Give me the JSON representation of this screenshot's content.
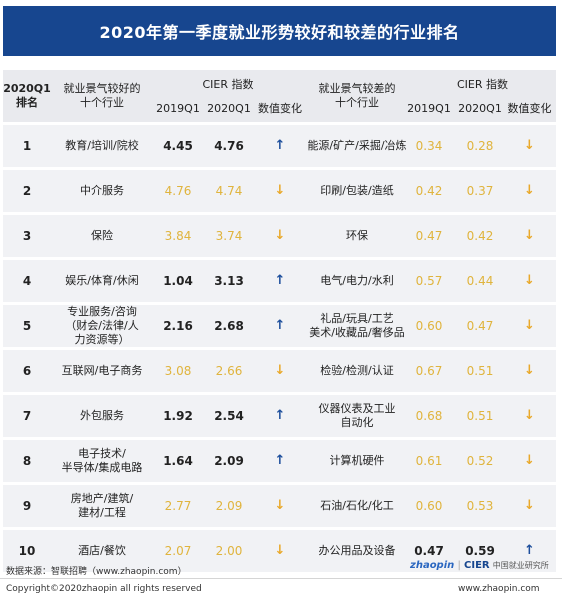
{
  "title": "2020年第一季度就业形势较好和较差的行业排名",
  "header": {
    "rank_label_1": "2020Q1",
    "rank_label_2": "排名",
    "good_industry_1": "就业景气较好的",
    "good_industry_2": "十个行业",
    "cier_index": "CIER 指数",
    "col_2019": "2019Q1",
    "col_2020": "2020Q1",
    "change": "数值变化",
    "bad_industry_1": "就业景气较差的",
    "bad_industry_2": "十个行业"
  },
  "rows": [
    {
      "rank": "1",
      "good": [
        "教育/培训/院校"
      ],
      "g2019": "4.45",
      "g2020": "4.76",
      "gcolor": "dark",
      "gdir": "up",
      "bad": [
        "能源/矿产/采掘/冶炼"
      ],
      "b2019": "0.34",
      "b2020": "0.28",
      "bcolor": "gold",
      "bdir": "down"
    },
    {
      "rank": "2",
      "good": [
        "中介服务"
      ],
      "g2019": "4.76",
      "g2020": "4.74",
      "gcolor": "gold",
      "gdir": "down",
      "bad": [
        "印刷/包装/造纸"
      ],
      "b2019": "0.42",
      "b2020": "0.37",
      "bcolor": "gold",
      "bdir": "down"
    },
    {
      "rank": "3",
      "good": [
        "保险"
      ],
      "g2019": "3.84",
      "g2020": "3.74",
      "gcolor": "gold",
      "gdir": "down",
      "bad": [
        "环保"
      ],
      "b2019": "0.47",
      "b2020": "0.42",
      "bcolor": "gold",
      "bdir": "down"
    },
    {
      "rank": "4",
      "good": [
        "娱乐/体育/休闲"
      ],
      "g2019": "1.04",
      "g2020": "3.13",
      "gcolor": "dark",
      "gdir": "up",
      "bad": [
        "电气/电力/水利"
      ],
      "b2019": "0.57",
      "b2020": "0.44",
      "bcolor": "gold",
      "bdir": "down"
    },
    {
      "rank": "5",
      "good": [
        "专业服务/咨询",
        "（财会/法律/人",
        "力资源等）"
      ],
      "g2019": "2.16",
      "g2020": "2.68",
      "gcolor": "dark",
      "gdir": "up",
      "bad": [
        "礼品/玩具/工艺",
        "美术/收藏品/奢侈品"
      ],
      "b2019": "0.60",
      "b2020": "0.47",
      "bcolor": "gold",
      "bdir": "down"
    },
    {
      "rank": "6",
      "good": [
        "互联网/电子商务"
      ],
      "g2019": "3.08",
      "g2020": "2.66",
      "gcolor": "gold",
      "gdir": "down",
      "bad": [
        "检验/检测/认证"
      ],
      "b2019": "0.67",
      "b2020": "0.51",
      "bcolor": "gold",
      "bdir": "down"
    },
    {
      "rank": "7",
      "good": [
        "外包服务"
      ],
      "g2019": "1.92",
      "g2020": "2.54",
      "gcolor": "dark",
      "gdir": "up",
      "bad": [
        "仪器仪表及工业",
        "自动化"
      ],
      "b2019": "0.68",
      "b2020": "0.51",
      "bcolor": "gold",
      "bdir": "down"
    },
    {
      "rank": "8",
      "good": [
        "电子技术/",
        "半导体/集成电路"
      ],
      "g2019": "1.64",
      "g2020": "2.09",
      "gcolor": "dark",
      "gdir": "up",
      "bad": [
        "计算机硬件"
      ],
      "b2019": "0.61",
      "b2020": "0.52",
      "bcolor": "gold",
      "bdir": "down"
    },
    {
      "rank": "9",
      "good": [
        "房地产/建筑/",
        "建材/工程"
      ],
      "g2019": "2.77",
      "g2020": "2.09",
      "gcolor": "gold",
      "gdir": "down",
      "bad": [
        "石油/石化/化工"
      ],
      "b2019": "0.60",
      "b2020": "0.53",
      "bcolor": "gold",
      "bdir": "down"
    },
    {
      "rank": "10",
      "good": [
        "酒店/餐饮"
      ],
      "g2019": "2.07",
      "g2020": "2.00",
      "gcolor": "gold",
      "gdir": "down",
      "bad": [
        "办公用品及设备"
      ],
      "b2019": "0.47",
      "b2020": "0.59",
      "bcolor": "dark",
      "bdir": "up"
    }
  ],
  "footer": {
    "source": "数据来源：智联招聘（www.zhaopin.com）",
    "logo_zhaopin": "zhaopin",
    "logo_cier": "CIER",
    "logo_cier_cn": "中国就业研究所",
    "copyright": "Copyright©2020zhaopin all rights reserved",
    "site": "www.zhaopin.com"
  }
}
